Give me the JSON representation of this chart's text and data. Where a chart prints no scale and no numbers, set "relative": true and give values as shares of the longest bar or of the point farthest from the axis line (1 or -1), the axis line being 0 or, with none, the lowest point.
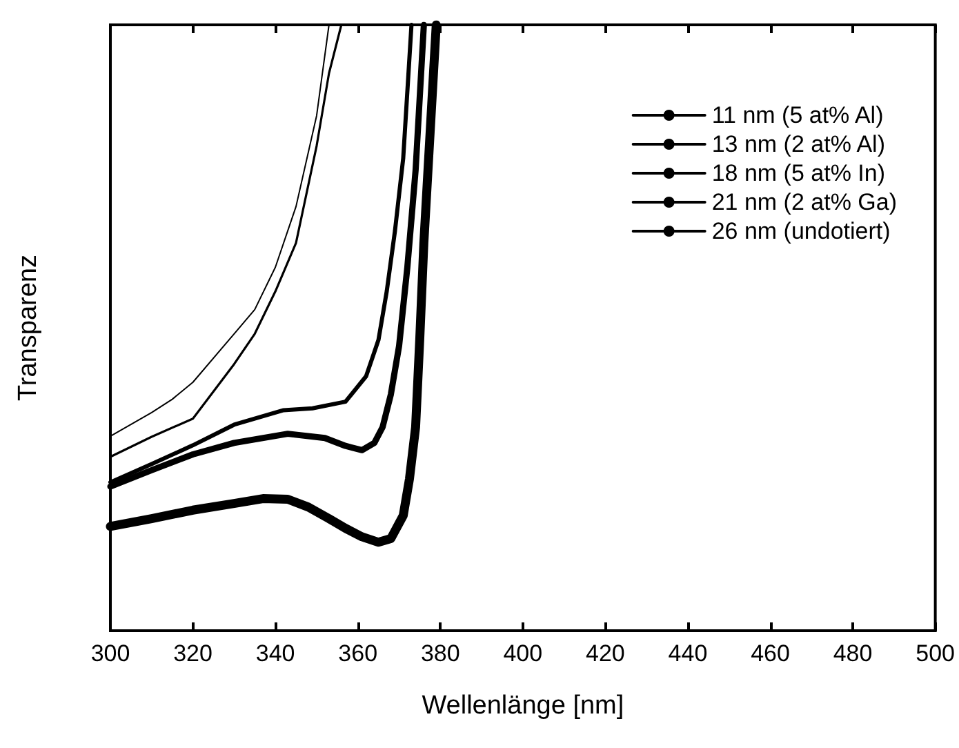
{
  "chart_data": {
    "type": "line",
    "relative": true,
    "xlabel": "Wellenlänge [nm]",
    "ylabel": "Transparenz",
    "xlim": [
      300,
      500
    ],
    "xticks": [
      300,
      320,
      340,
      360,
      380,
      400,
      420,
      440,
      460,
      480,
      500
    ],
    "tick_labels": "x",
    "grid": false,
    "legend": "top right",
    "marker": "none",
    "line_style": "solid",
    "series": [
      {
        "name": "11 nm (5 at% Al)",
        "color": "#000000",
        "x": [
          300,
          310,
          315,
          320,
          330,
          335,
          340,
          345,
          350,
          353
        ],
        "values": [
          0.321,
          0.36,
          0.382,
          0.41,
          0.49,
          0.53,
          0.6,
          0.7,
          0.85,
          1.0
        ]
      },
      {
        "name": "13 nm (2 at% Al)",
        "color": "#000000",
        "x": [
          300,
          310,
          320,
          330,
          335,
          340,
          345,
          350,
          353,
          356
        ],
        "values": [
          0.287,
          0.32,
          0.35,
          0.44,
          0.49,
          0.56,
          0.64,
          0.8,
          0.92,
          1.0
        ]
      },
      {
        "name": "18 nm (5 at% In)",
        "color": "#000000",
        "x": [
          300,
          310,
          320,
          330,
          342,
          349,
          357,
          362,
          365,
          367,
          369,
          371,
          373
        ],
        "values": [
          0.245,
          0.275,
          0.306,
          0.34,
          0.364,
          0.367,
          0.378,
          0.42,
          0.48,
          0.56,
          0.66,
          0.78,
          1.0
        ]
      },
      {
        "name": "21 nm (2 at% Ga)",
        "color": "#000000",
        "x": [
          300,
          310,
          320,
          330,
          343,
          352,
          357,
          361,
          364,
          366,
          368,
          370,
          372,
          374,
          376
        ],
        "values": [
          0.238,
          0.265,
          0.291,
          0.31,
          0.325,
          0.318,
          0.305,
          0.298,
          0.31,
          0.336,
          0.39,
          0.47,
          0.6,
          0.76,
          1.0
        ]
      },
      {
        "name": "26 nm (undotiert)",
        "color": "#000000",
        "x": [
          300,
          310,
          320,
          330,
          337,
          343,
          348,
          353,
          357,
          361,
          365,
          368,
          371,
          372.5,
          374,
          375,
          376,
          377.5,
          379
        ],
        "values": [
          0.172,
          0.185,
          0.199,
          0.21,
          0.218,
          0.217,
          0.204,
          0.185,
          0.169,
          0.155,
          0.146,
          0.152,
          0.19,
          0.25,
          0.336,
          0.48,
          0.64,
          0.82,
          1.0
        ]
      }
    ]
  }
}
